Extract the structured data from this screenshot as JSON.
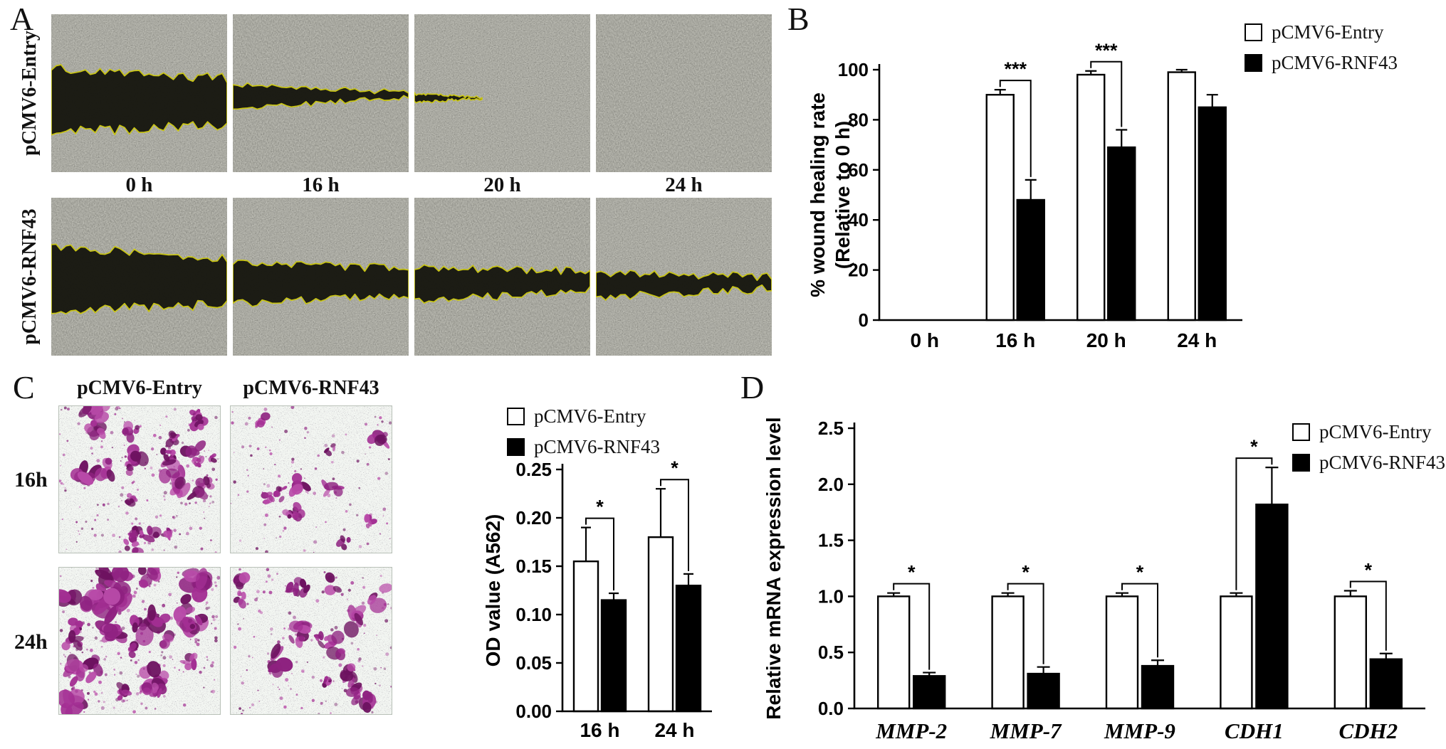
{
  "panels": {
    "a": {
      "label": "A",
      "row_labels": [
        "pCMV6-Entry",
        "pCMV6-RNF43"
      ],
      "time_labels": [
        "0 h",
        "16 h",
        "20 h",
        "24 h"
      ]
    },
    "b": {
      "label": "B"
    },
    "c": {
      "label": "C",
      "column_headers": [
        "pCMV6-Entry",
        "pCMV6-RNF43"
      ],
      "row_labels": [
        "16h",
        "24h"
      ]
    },
    "d": {
      "label": "D"
    }
  },
  "colors": {
    "entry_bar": "#ffffff",
    "rnf43_bar": "#000000",
    "wound_outline": "#c9c513",
    "stain_purple": "#9a2589"
  },
  "chart_data": [
    {
      "id": "wound-healing-rate",
      "type": "bar",
      "title": "",
      "ylabel_lines": [
        "% wound healing rate",
        "(Relative to 0 h)"
      ],
      "categories": [
        "0 h",
        "16 h",
        "20 h",
        "24 h"
      ],
      "series": [
        {
          "name": "pCMV6-Entry",
          "color": "#ffffff",
          "values": [
            0,
            90,
            98,
            99
          ],
          "errors": [
            0,
            2,
            1.5,
            1
          ]
        },
        {
          "name": "pCMV6-RNF43",
          "color": "#000000",
          "values": [
            0,
            48,
            69,
            85
          ],
          "errors": [
            0,
            8,
            7,
            5
          ]
        }
      ],
      "ylim": [
        0,
        100
      ],
      "yticks": [
        0,
        20,
        40,
        60,
        80,
        100
      ],
      "ytick_decimals": 0,
      "significance": [
        {
          "category_index": 1,
          "label": "***"
        },
        {
          "category_index": 2,
          "label": "***"
        }
      ],
      "legend_position": "top-right",
      "grid": false
    },
    {
      "id": "od-value",
      "type": "bar",
      "title": "",
      "ylabel_lines": [
        "OD value (A562)"
      ],
      "categories": [
        "16 h",
        "24 h"
      ],
      "series": [
        {
          "name": "pCMV6-Entry",
          "color": "#ffffff",
          "values": [
            0.155,
            0.18
          ],
          "errors": [
            0.035,
            0.05
          ]
        },
        {
          "name": "pCMV6-RNF43",
          "color": "#000000",
          "values": [
            0.115,
            0.13
          ],
          "errors": [
            0.007,
            0.012
          ]
        }
      ],
      "ylim": [
        0,
        0.25
      ],
      "yticks": [
        0,
        0.05,
        0.1,
        0.15,
        0.2,
        0.25
      ],
      "ytick_decimals": 2,
      "significance": [
        {
          "category_index": 0,
          "label": "*"
        },
        {
          "category_index": 1,
          "label": "*"
        }
      ],
      "legend_position": "top",
      "grid": false
    },
    {
      "id": "mrna-expression",
      "type": "bar",
      "title": "",
      "ylabel_lines": [
        "Relative mRNA expression level"
      ],
      "categories": [
        "MMP-2",
        "MMP-7",
        "MMP-9",
        "CDH1",
        "CDH2"
      ],
      "categories_italic": true,
      "series": [
        {
          "name": "pCMV6-Entry",
          "color": "#ffffff",
          "values": [
            1.0,
            1.0,
            1.0,
            1.0,
            1.0
          ],
          "errors": [
            0.03,
            0.03,
            0.03,
            0.03,
            0.05
          ]
        },
        {
          "name": "pCMV6-RNF43",
          "color": "#000000",
          "values": [
            0.29,
            0.31,
            0.38,
            1.82,
            0.44
          ],
          "errors": [
            0.03,
            0.06,
            0.05,
            0.33,
            0.05
          ]
        }
      ],
      "ylim": [
        0,
        2.5
      ],
      "yticks": [
        0,
        0.5,
        1,
        1.5,
        2,
        2.5
      ],
      "ytick_decimals": 1,
      "significance": [
        {
          "category_index": 0,
          "label": "*"
        },
        {
          "category_index": 1,
          "label": "*"
        },
        {
          "category_index": 2,
          "label": "*"
        },
        {
          "category_index": 3,
          "label": "*"
        },
        {
          "category_index": 4,
          "label": "*"
        }
      ],
      "legend_position": "top-right",
      "grid": false
    }
  ]
}
